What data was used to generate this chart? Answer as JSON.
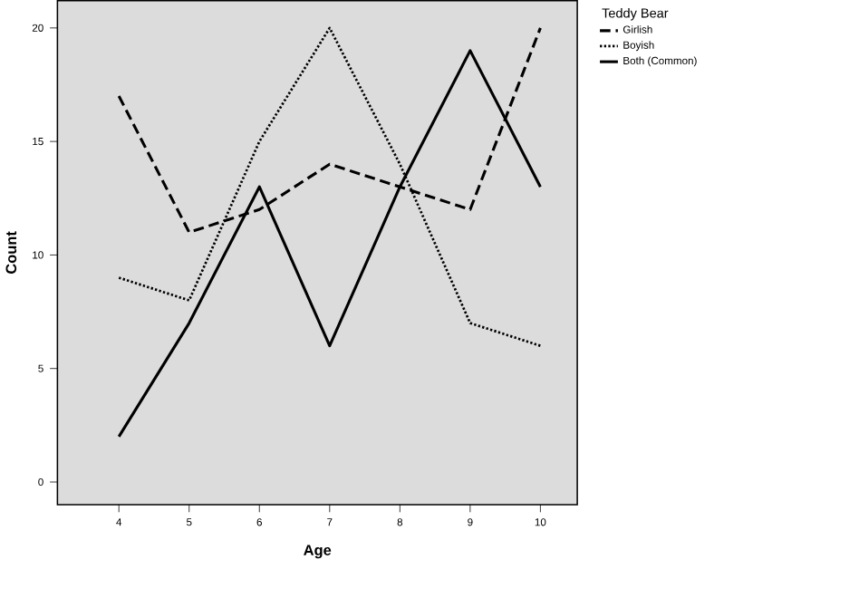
{
  "chart_data": {
    "type": "line",
    "xlabel": "Age",
    "ylabel": "Count",
    "legend_title": "Teddy Bear",
    "categories": [
      "4",
      "5",
      "6",
      "7",
      "8",
      "9",
      "10"
    ],
    "series": [
      {
        "name": "Girlish",
        "color": "#000000",
        "line_style": "dashed",
        "values": [
          17,
          11,
          12,
          14,
          13,
          12,
          20
        ]
      },
      {
        "name": "Boyish",
        "color": "#000000",
        "line_style": "dotted",
        "values": [
          9,
          8,
          15,
          20,
          14,
          7,
          6
        ]
      },
      {
        "name": "Both (Common)",
        "color": "#000000",
        "line_style": "solid",
        "values": [
          2,
          7,
          13,
          6,
          13,
          19,
          13
        ]
      }
    ],
    "ylim": [
      -1,
      21.2
    ],
    "yticks": [
      0,
      5,
      10,
      15,
      20
    ],
    "legend": "top right",
    "grid": false,
    "marker": "none"
  }
}
